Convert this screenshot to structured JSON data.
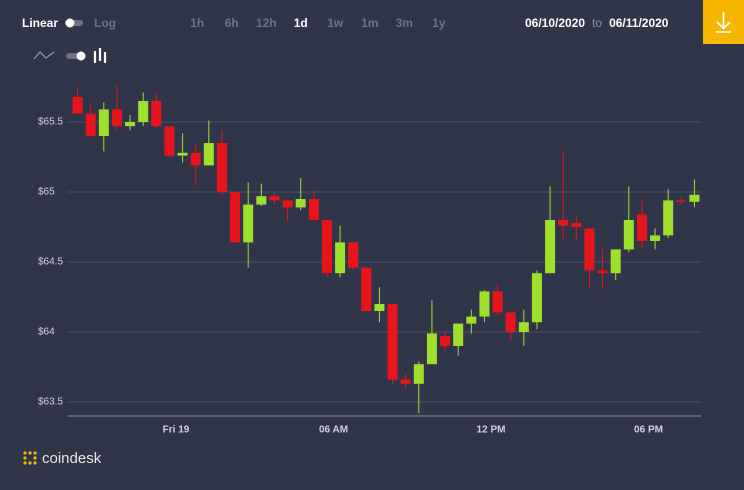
{
  "toolbar": {
    "scale_options": [
      "Linear",
      "Log"
    ],
    "ranges": [
      "1h",
      "6h",
      "12h",
      "1d",
      "1w",
      "1m",
      "3m",
      "1y"
    ],
    "active_range": 3,
    "date_from": "06/10/2020",
    "date_separator": "to",
    "date_to": "06/11/2020"
  },
  "brand": "coindesk",
  "chart_data": {
    "type": "candlestick",
    "up_color": "#9ee02c",
    "down_color": "#e8141b",
    "grid": true,
    "categories": [
      null,
      null,
      null,
      null,
      null,
      null,
      null,
      null,
      "Fri 19",
      null,
      null,
      null,
      null,
      null,
      null,
      null,
      null,
      null,
      null,
      null,
      "06 AM",
      null,
      null,
      null,
      null,
      null,
      null,
      null,
      null,
      null,
      null,
      null,
      "12 PM",
      null,
      null,
      null,
      null,
      null,
      null,
      null,
      null,
      null,
      null,
      null,
      "06 PM",
      null,
      null,
      null
    ],
    "open": [
      65.68,
      65.56,
      65.4,
      65.59,
      65.47,
      65.5,
      65.65,
      65.47,
      65.26,
      65.28,
      65.19,
      65.35,
      65.0,
      64.64,
      64.91,
      64.97,
      64.94,
      64.89,
      64.95,
      64.8,
      64.42,
      64.64,
      64.46,
      64.15,
      64.2,
      63.66,
      63.63,
      63.77,
      63.97,
      63.9,
      64.06,
      64.11,
      64.29,
      64.14,
      64.0,
      64.07,
      64.42,
      64.8,
      64.78,
      64.74,
      64.44,
      64.42,
      64.59,
      64.84,
      64.65,
      64.69,
      64.94,
      64.93
    ],
    "high": [
      65.75,
      65.62,
      65.64,
      65.76,
      65.55,
      65.71,
      65.71,
      65.47,
      65.42,
      65.34,
      65.51,
      65.44,
      65.0,
      65.07,
      65.06,
      64.99,
      64.95,
      65.1,
      65.01,
      64.8,
      64.76,
      64.64,
      64.46,
      64.32,
      64.2,
      63.7,
      63.79,
      64.23,
      64.01,
      64.06,
      64.16,
      64.3,
      64.34,
      64.14,
      64.16,
      64.44,
      65.04,
      65.29,
      64.83,
      64.74,
      64.59,
      64.59,
      65.04,
      64.94,
      64.74,
      65.02,
      64.96,
      65.09
    ],
    "low": [
      65.56,
      65.39,
      65.29,
      65.44,
      65.44,
      65.47,
      65.46,
      65.25,
      65.21,
      65.05,
      65.19,
      64.98,
      64.64,
      64.46,
      64.9,
      64.91,
      64.79,
      64.87,
      64.8,
      64.39,
      64.39,
      64.44,
      64.15,
      64.07,
      63.63,
      63.59,
      63.42,
      63.77,
      63.86,
      63.83,
      63.99,
      64.07,
      64.12,
      63.94,
      63.9,
      64.02,
      64.42,
      64.66,
      64.65,
      64.32,
      64.31,
      64.37,
      64.57,
      64.59,
      64.59,
      64.67,
      64.91,
      64.89
    ],
    "close": [
      65.56,
      65.4,
      65.59,
      65.47,
      65.5,
      65.65,
      65.47,
      65.26,
      65.28,
      65.19,
      65.35,
      65.0,
      64.64,
      64.91,
      64.97,
      64.94,
      64.89,
      64.95,
      64.8,
      64.42,
      64.64,
      64.46,
      64.15,
      64.2,
      63.66,
      63.63,
      63.77,
      63.99,
      63.9,
      64.06,
      64.11,
      64.29,
      64.14,
      64.0,
      64.07,
      64.42,
      64.8,
      64.76,
      64.75,
      64.44,
      64.42,
      64.59,
      64.8,
      64.65,
      64.69,
      64.94,
      64.93,
      64.98
    ],
    "ylim": [
      63.4,
      65.9
    ],
    "yticks": [
      {
        "value": 63.5,
        "label": "$63.5"
      },
      {
        "value": 64,
        "label": "$64"
      },
      {
        "value": 64.5,
        "label": "$64.5"
      },
      {
        "value": 65,
        "label": "$65"
      },
      {
        "value": 65.5,
        "label": "$65.5"
      }
    ]
  }
}
